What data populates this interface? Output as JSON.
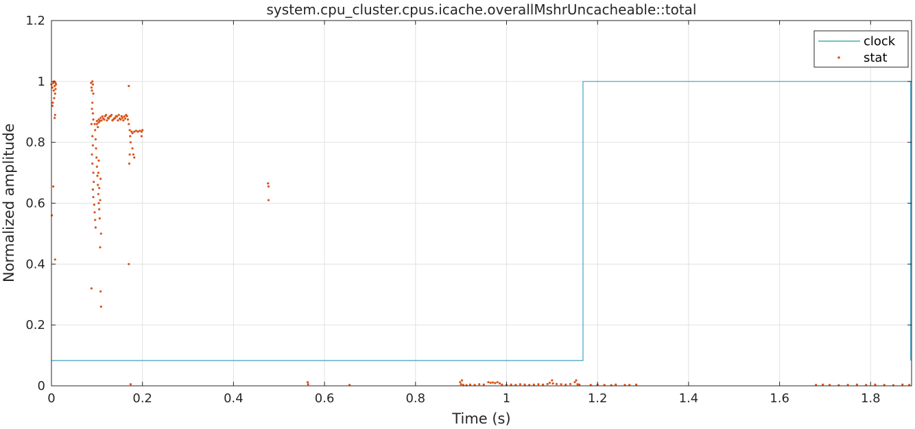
{
  "chart_data": {
    "type": "line",
    "title": "system.cpu_cluster.cpus.icache.overallMshrUncacheable::total",
    "xlabel": "Time (s)",
    "ylabel": "Normalized amplitude",
    "xlim": [
      0,
      1.89
    ],
    "ylim": [
      0,
      1.2
    ],
    "x_ticks": [
      0,
      0.2,
      0.4,
      0.6,
      0.8,
      1,
      1.2,
      1.4,
      1.6,
      1.8
    ],
    "x_tick_labels": [
      "0",
      "0.2",
      "0.4",
      "0.6",
      "0.8",
      "1",
      "1.2",
      "1.4",
      "1.6",
      "1.8"
    ],
    "y_ticks": [
      0,
      0.2,
      0.4,
      0.6,
      0.8,
      1,
      1.2
    ],
    "y_tick_labels": [
      "0",
      "0.2",
      "0.4",
      "0.6",
      "0.8",
      "1",
      "1.2"
    ],
    "grid": true,
    "legend_position": "top-right",
    "series": [
      {
        "name": "clock",
        "style": "line",
        "color": "#3f9fc4",
        "legend_color": "#2a9a9a",
        "x": [
          0,
          1.168,
          1.168,
          1.888,
          1.888
        ],
        "y": [
          0.083,
          0.083,
          1,
          1,
          0.083
        ]
      },
      {
        "name": "stat",
        "style": "scatter",
        "color": "#d95319",
        "points": [
          [
            0.0,
            0.99
          ],
          [
            0.002,
            0.98
          ],
          [
            0.004,
            0.995
          ],
          [
            0.005,
            0.97
          ],
          [
            0.006,
            1.0
          ],
          [
            0.007,
            0.985
          ],
          [
            0.008,
            0.96
          ],
          [
            0.009,
            0.995
          ],
          [
            0.003,
            0.93
          ],
          [
            0.002,
            0.92
          ],
          [
            0.006,
            0.945
          ],
          [
            0.008,
            0.89
          ],
          [
            0.007,
            0.88
          ],
          [
            0.004,
            0.655
          ],
          [
            0.001,
            0.56
          ],
          [
            0.008,
            0.415
          ],
          [
            0.01,
            0.99
          ],
          [
            0.009,
            0.975
          ],
          [
            0.087,
            0.995
          ],
          [
            0.088,
            0.98
          ],
          [
            0.089,
            0.97
          ],
          [
            0.09,
            1.0
          ],
          [
            0.091,
            0.99
          ],
          [
            0.092,
            0.96
          ],
          [
            0.09,
            0.93
          ],
          [
            0.089,
            0.91
          ],
          [
            0.091,
            0.895
          ],
          [
            0.092,
            0.875
          ],
          [
            0.088,
            0.86
          ],
          [
            0.09,
            0.82
          ],
          [
            0.091,
            0.79
          ],
          [
            0.089,
            0.76
          ],
          [
            0.09,
            0.73
          ],
          [
            0.092,
            0.7
          ],
          [
            0.093,
            0.67
          ],
          [
            0.091,
            0.645
          ],
          [
            0.092,
            0.62
          ],
          [
            0.094,
            0.595
          ],
          [
            0.095,
            0.57
          ],
          [
            0.096,
            0.545
          ],
          [
            0.097,
            0.52
          ],
          [
            0.088,
            0.32
          ],
          [
            0.095,
            0.86
          ],
          [
            0.096,
            0.84
          ],
          [
            0.097,
            0.81
          ],
          [
            0.098,
            0.78
          ],
          [
            0.099,
            0.75
          ],
          [
            0.1,
            0.72
          ],
          [
            0.101,
            0.69
          ],
          [
            0.102,
            0.66
          ],
          [
            0.103,
            0.63
          ],
          [
            0.104,
            0.6
          ],
          [
            0.105,
            0.58
          ],
          [
            0.106,
            0.55
          ],
          [
            0.104,
            0.74
          ],
          [
            0.103,
            0.7
          ],
          [
            0.105,
            0.65
          ],
          [
            0.107,
            0.61
          ],
          [
            0.108,
            0.68
          ],
          [
            0.109,
            0.5
          ],
          [
            0.107,
            0.455
          ],
          [
            0.108,
            0.31
          ],
          [
            0.109,
            0.26
          ],
          [
            0.1,
            0.86
          ],
          [
            0.102,
            0.85
          ],
          [
            0.104,
            0.865
          ],
          [
            0.106,
            0.87
          ],
          [
            0.1,
            0.87
          ],
          [
            0.104,
            0.875
          ],
          [
            0.108,
            0.88
          ],
          [
            0.112,
            0.885
          ],
          [
            0.116,
            0.875
          ],
          [
            0.12,
            0.89
          ],
          [
            0.124,
            0.88
          ],
          [
            0.128,
            0.885
          ],
          [
            0.132,
            0.89
          ],
          [
            0.136,
            0.875
          ],
          [
            0.14,
            0.88
          ],
          [
            0.144,
            0.885
          ],
          [
            0.148,
            0.89
          ],
          [
            0.152,
            0.875
          ],
          [
            0.156,
            0.88
          ],
          [
            0.16,
            0.885
          ],
          [
            0.164,
            0.89
          ],
          [
            0.168,
            0.875
          ],
          [
            0.11,
            0.872
          ],
          [
            0.114,
            0.878
          ],
          [
            0.118,
            0.886
          ],
          [
            0.122,
            0.872
          ],
          [
            0.126,
            0.878
          ],
          [
            0.13,
            0.886
          ],
          [
            0.134,
            0.872
          ],
          [
            0.138,
            0.878
          ],
          [
            0.142,
            0.886
          ],
          [
            0.146,
            0.872
          ],
          [
            0.15,
            0.878
          ],
          [
            0.154,
            0.886
          ],
          [
            0.158,
            0.872
          ],
          [
            0.162,
            0.878
          ],
          [
            0.166,
            0.886
          ],
          [
            0.17,
            0.86
          ],
          [
            0.17,
            0.985
          ],
          [
            0.172,
            0.84
          ],
          [
            0.173,
            0.82
          ],
          [
            0.174,
            0.8
          ],
          [
            0.171,
            0.73
          ],
          [
            0.172,
            0.76
          ],
          [
            0.17,
            0.4
          ],
          [
            0.174,
            0.005
          ],
          [
            0.176,
            0.835
          ],
          [
            0.178,
            0.78
          ],
          [
            0.18,
            0.76
          ],
          [
            0.182,
            0.75
          ],
          [
            0.178,
            0.83
          ],
          [
            0.182,
            0.835
          ],
          [
            0.186,
            0.838
          ],
          [
            0.19,
            0.835
          ],
          [
            0.194,
            0.838
          ],
          [
            0.198,
            0.835
          ],
          [
            0.2,
            0.84
          ],
          [
            0.198,
            0.82
          ],
          [
            0.476,
            0.665
          ],
          [
            0.477,
            0.655
          ],
          [
            0.477,
            0.61
          ],
          [
            0.563,
            0.012
          ],
          [
            0.564,
            0.005
          ],
          [
            0.655,
            0.003
          ],
          [
            0.898,
            0.012
          ],
          [
            0.9,
            0.005
          ],
          [
            0.902,
            0.018
          ],
          [
            0.905,
            0.003
          ],
          [
            0.912,
            0.002
          ],
          [
            0.92,
            0.004
          ],
          [
            0.93,
            0.003
          ],
          [
            0.94,
            0.005
          ],
          [
            0.95,
            0.004
          ],
          [
            0.96,
            0.012
          ],
          [
            0.965,
            0.01
          ],
          [
            0.97,
            0.011
          ],
          [
            0.975,
            0.009
          ],
          [
            0.98,
            0.012
          ],
          [
            0.985,
            0.008
          ],
          [
            0.99,
            0.004
          ],
          [
            1.0,
            0.003
          ],
          [
            1.01,
            0.004
          ],
          [
            1.02,
            0.003
          ],
          [
            1.03,
            0.005
          ],
          [
            1.04,
            0.004
          ],
          [
            1.05,
            0.003
          ],
          [
            1.06,
            0.004
          ],
          [
            1.07,
            0.005
          ],
          [
            1.08,
            0.004
          ],
          [
            1.09,
            0.006
          ],
          [
            1.095,
            0.01
          ],
          [
            1.1,
            0.018
          ],
          [
            1.102,
            0.008
          ],
          [
            1.11,
            0.006
          ],
          [
            1.12,
            0.005
          ],
          [
            1.13,
            0.004
          ],
          [
            1.14,
            0.006
          ],
          [
            1.15,
            0.012
          ],
          [
            1.153,
            0.018
          ],
          [
            1.156,
            0.005
          ],
          [
            1.16,
            0.004
          ],
          [
            1.185,
            0.003
          ],
          [
            1.2,
            0.004
          ],
          [
            1.215,
            0.003
          ],
          [
            1.23,
            0.002
          ],
          [
            1.24,
            0.004
          ],
          [
            1.26,
            0.003
          ],
          [
            1.27,
            0.003
          ],
          [
            1.285,
            0.004
          ],
          [
            1.68,
            0.003
          ],
          [
            1.695,
            0.004
          ],
          [
            1.71,
            0.003
          ],
          [
            1.73,
            0.002
          ],
          [
            1.75,
            0.003
          ],
          [
            1.77,
            0.004
          ],
          [
            1.79,
            0.003
          ],
          [
            1.81,
            0.004
          ],
          [
            1.83,
            0.003
          ],
          [
            1.85,
            0.002
          ],
          [
            1.87,
            0.004
          ],
          [
            1.885,
            0.003
          ]
        ]
      }
    ]
  }
}
